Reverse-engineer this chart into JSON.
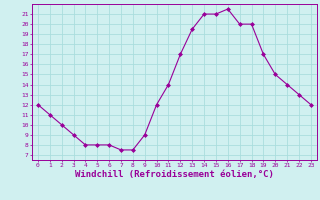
{
  "hours": [
    0,
    1,
    2,
    3,
    4,
    5,
    6,
    7,
    8,
    9,
    10,
    11,
    12,
    13,
    14,
    15,
    16,
    17,
    18,
    19,
    20,
    21,
    22,
    23
  ],
  "values": [
    12,
    11,
    10,
    9,
    8,
    8,
    8,
    7.5,
    7.5,
    9,
    12,
    14,
    17,
    19.5,
    21,
    21,
    21.5,
    20,
    20,
    17,
    15,
    14,
    13,
    12
  ],
  "line_color": "#990099",
  "marker": "D",
  "marker_size": 2,
  "bg_color": "#d0f0f0",
  "grid_color": "#aadddd",
  "xlabel": "Windchill (Refroidissement éolien,°C)",
  "xlabel_color": "#990099",
  "xlim": [
    -0.5,
    23.5
  ],
  "ylim": [
    6.5,
    22
  ],
  "yticks": [
    7,
    8,
    9,
    10,
    11,
    12,
    13,
    14,
    15,
    16,
    17,
    18,
    19,
    20,
    21
  ],
  "xticks": [
    0,
    1,
    2,
    3,
    4,
    5,
    6,
    7,
    8,
    9,
    10,
    11,
    12,
    13,
    14,
    15,
    16,
    17,
    18,
    19,
    20,
    21,
    22,
    23
  ],
  "tick_color": "#990099",
  "tick_fontsize": 4.5,
  "xlabel_fontsize": 6.5,
  "spine_color": "#990099"
}
